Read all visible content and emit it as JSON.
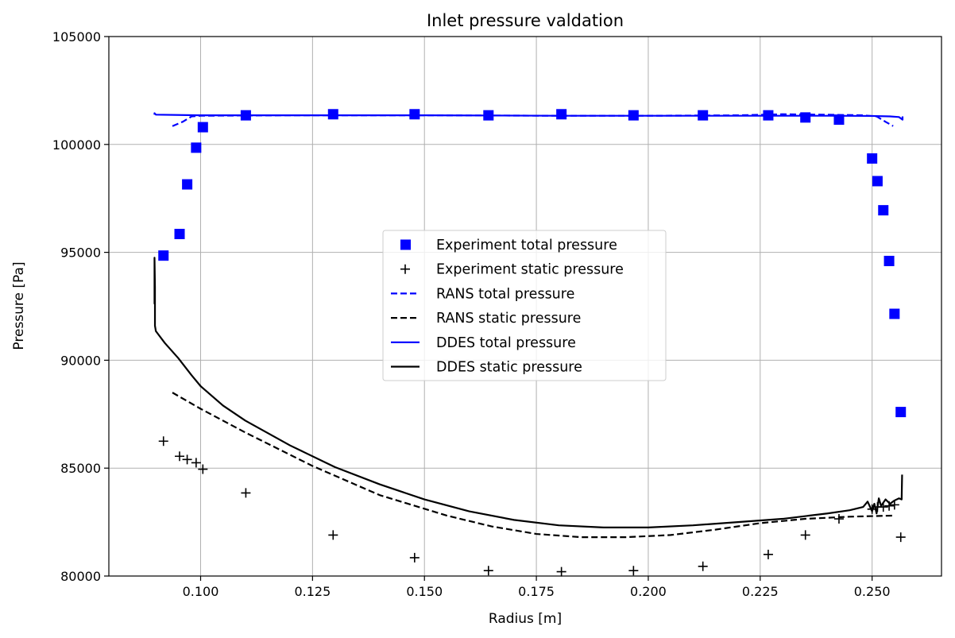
{
  "chart_data": {
    "type": "line",
    "title": "Inlet pressure valdation",
    "xlabel": "Radius [m]",
    "ylabel": "Pressure [Pa]",
    "xlim": [
      0.0795,
      0.2655
    ],
    "ylim": [
      80000,
      105000
    ],
    "xticks": [
      0.1,
      0.125,
      0.15,
      0.175,
      0.2,
      0.225,
      0.25
    ],
    "xtick_labels": [
      "0.100",
      "0.125",
      "0.150",
      "0.175",
      "0.200",
      "0.225",
      "0.250"
    ],
    "yticks": [
      80000,
      85000,
      90000,
      95000,
      100000,
      105000
    ],
    "ytick_labels": [
      "80000",
      "85000",
      "90000",
      "95000",
      "100000",
      "105000"
    ],
    "grid": true,
    "legend_position": "center",
    "series": [
      {
        "name": "Experiment total pressure",
        "style": "markers-square",
        "color": "#0000ff",
        "points": [
          [
            0.0917,
            94850
          ],
          [
            0.0953,
            95850
          ],
          [
            0.097,
            98150
          ],
          [
            0.099,
            99850
          ],
          [
            0.1005,
            100800
          ],
          [
            0.1101,
            101350
          ],
          [
            0.1296,
            101400
          ],
          [
            0.1478,
            101400
          ],
          [
            0.1643,
            101350
          ],
          [
            0.1806,
            101400
          ],
          [
            0.1967,
            101350
          ],
          [
            0.2122,
            101350
          ],
          [
            0.2268,
            101350
          ],
          [
            0.2351,
            101250
          ],
          [
            0.2426,
            101150
          ],
          [
            0.25,
            99350
          ],
          [
            0.2512,
            98300
          ],
          [
            0.2525,
            96950
          ],
          [
            0.2538,
            94600
          ],
          [
            0.255,
            92150
          ],
          [
            0.2564,
            87600
          ]
        ]
      },
      {
        "name": "Experiment static pressure",
        "style": "markers-plus",
        "color": "#000000",
        "points": [
          [
            0.0917,
            86250
          ],
          [
            0.0953,
            85550
          ],
          [
            0.097,
            85400
          ],
          [
            0.099,
            85250
          ],
          [
            0.1005,
            84950
          ],
          [
            0.1101,
            83850
          ],
          [
            0.1296,
            81900
          ],
          [
            0.1478,
            80850
          ],
          [
            0.1643,
            80250
          ],
          [
            0.1806,
            80200
          ],
          [
            0.1967,
            80250
          ],
          [
            0.2122,
            80450
          ],
          [
            0.2268,
            81000
          ],
          [
            0.2351,
            81900
          ],
          [
            0.2426,
            82650
          ],
          [
            0.25,
            83100
          ],
          [
            0.2512,
            83200
          ],
          [
            0.2525,
            83200
          ],
          [
            0.2538,
            83250
          ],
          [
            0.255,
            83300
          ],
          [
            0.2564,
            81800
          ]
        ]
      },
      {
        "name": "RANS total pressure",
        "style": "dashed",
        "color": "#0000ff",
        "points": [
          [
            0.0937,
            100850
          ],
          [
            0.096,
            101050
          ],
          [
            0.098,
            101300
          ],
          [
            0.1,
            101330
          ],
          [
            0.12,
            101350
          ],
          [
            0.15,
            101350
          ],
          [
            0.18,
            101330
          ],
          [
            0.2,
            101330
          ],
          [
            0.22,
            101350
          ],
          [
            0.23,
            101400
          ],
          [
            0.24,
            101380
          ],
          [
            0.248,
            101350
          ],
          [
            0.251,
            101300
          ],
          [
            0.253,
            101050
          ],
          [
            0.2547,
            100850
          ]
        ]
      },
      {
        "name": "RANS static pressure",
        "style": "dashed",
        "color": "#000000",
        "points": [
          [
            0.0937,
            88500
          ],
          [
            0.1,
            87750
          ],
          [
            0.11,
            86650
          ],
          [
            0.125,
            85100
          ],
          [
            0.14,
            83750
          ],
          [
            0.155,
            82800
          ],
          [
            0.165,
            82300
          ],
          [
            0.175,
            81950
          ],
          [
            0.185,
            81800
          ],
          [
            0.195,
            81800
          ],
          [
            0.205,
            81900
          ],
          [
            0.215,
            82150
          ],
          [
            0.225,
            82450
          ],
          [
            0.235,
            82650
          ],
          [
            0.245,
            82750
          ],
          [
            0.2547,
            82800
          ]
        ]
      },
      {
        "name": "DDES total pressure",
        "style": "solid",
        "color": "#0000ff",
        "points": [
          [
            0.0897,
            101380
          ],
          [
            0.0897,
            101450
          ],
          [
            0.09,
            101380
          ],
          [
            0.1,
            101350
          ],
          [
            0.12,
            101350
          ],
          [
            0.15,
            101350
          ],
          [
            0.18,
            101330
          ],
          [
            0.2,
            101330
          ],
          [
            0.22,
            101330
          ],
          [
            0.24,
            101330
          ],
          [
            0.25,
            101320
          ],
          [
            0.254,
            101300
          ],
          [
            0.256,
            101270
          ],
          [
            0.2568,
            101150
          ],
          [
            0.2568,
            101300
          ]
        ]
      },
      {
        "name": "DDES static pressure",
        "style": "solid",
        "color": "#000000",
        "points": [
          [
            0.0897,
            92600
          ],
          [
            0.0897,
            94750
          ],
          [
            0.0898,
            93400
          ],
          [
            0.0898,
            91600
          ],
          [
            0.09,
            91350
          ],
          [
            0.092,
            90800
          ],
          [
            0.095,
            90100
          ],
          [
            0.098,
            89300
          ],
          [
            0.1,
            88800
          ],
          [
            0.105,
            87900
          ],
          [
            0.11,
            87200
          ],
          [
            0.12,
            86050
          ],
          [
            0.13,
            85050
          ],
          [
            0.14,
            84250
          ],
          [
            0.15,
            83550
          ],
          [
            0.16,
            83000
          ],
          [
            0.17,
            82600
          ],
          [
            0.18,
            82350
          ],
          [
            0.19,
            82250
          ],
          [
            0.2,
            82250
          ],
          [
            0.21,
            82350
          ],
          [
            0.22,
            82500
          ],
          [
            0.23,
            82650
          ],
          [
            0.24,
            82900
          ],
          [
            0.245,
            83050
          ],
          [
            0.248,
            83200
          ],
          [
            0.249,
            83450
          ],
          [
            0.25,
            83000
          ],
          [
            0.2505,
            83350
          ],
          [
            0.251,
            82900
          ],
          [
            0.2515,
            83600
          ],
          [
            0.252,
            83250
          ],
          [
            0.253,
            83550
          ],
          [
            0.254,
            83350
          ],
          [
            0.255,
            83500
          ],
          [
            0.256,
            83600
          ],
          [
            0.2566,
            83550
          ],
          [
            0.2567,
            84700
          ]
        ]
      }
    ]
  }
}
